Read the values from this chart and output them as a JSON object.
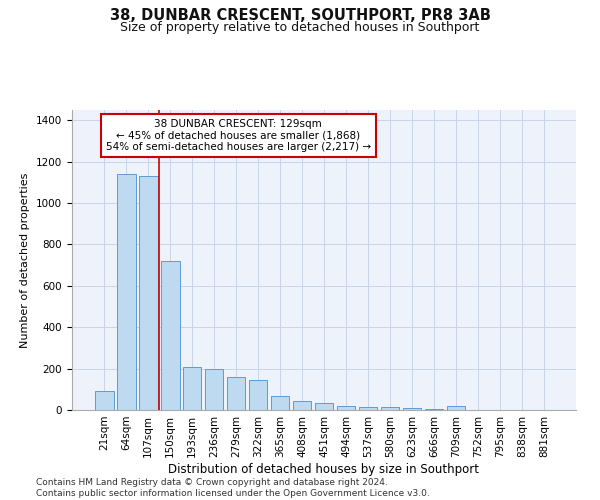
{
  "title": "38, DUNBAR CRESCENT, SOUTHPORT, PR8 3AB",
  "subtitle": "Size of property relative to detached houses in Southport",
  "xlabel": "Distribution of detached houses by size in Southport",
  "ylabel": "Number of detached properties",
  "categories": [
    "21sqm",
    "64sqm",
    "107sqm",
    "150sqm",
    "193sqm",
    "236sqm",
    "279sqm",
    "322sqm",
    "365sqm",
    "408sqm",
    "451sqm",
    "494sqm",
    "537sqm",
    "580sqm",
    "623sqm",
    "666sqm",
    "709sqm",
    "752sqm",
    "795sqm",
    "838sqm",
    "881sqm"
  ],
  "values": [
    90,
    1140,
    1130,
    720,
    210,
    200,
    160,
    145,
    70,
    45,
    35,
    20,
    15,
    15,
    12,
    5,
    20,
    0,
    0,
    0,
    0
  ],
  "bar_color": "#bedaf0",
  "bar_edge_color": "#5b9bd5",
  "vline_x": 2.51,
  "annotation_text": "38 DUNBAR CRESCENT: 129sqm\n← 45% of detached houses are smaller (1,868)\n54% of semi-detached houses are larger (2,217) →",
  "annotation_box_facecolor": "#ffffff",
  "annotation_box_edgecolor": "#cc0000",
  "vline_color": "#cc0000",
  "grid_color": "#c8d4e8",
  "background_color": "#eef2fa",
  "footer": "Contains HM Land Registry data © Crown copyright and database right 2024.\nContains public sector information licensed under the Open Government Licence v3.0.",
  "ylim": [
    0,
    1450
  ],
  "title_fontsize": 10.5,
  "subtitle_fontsize": 9,
  "xlabel_fontsize": 8.5,
  "ylabel_fontsize": 8,
  "tick_fontsize": 7.5,
  "footer_fontsize": 6.5,
  "annot_fontsize": 7.5
}
